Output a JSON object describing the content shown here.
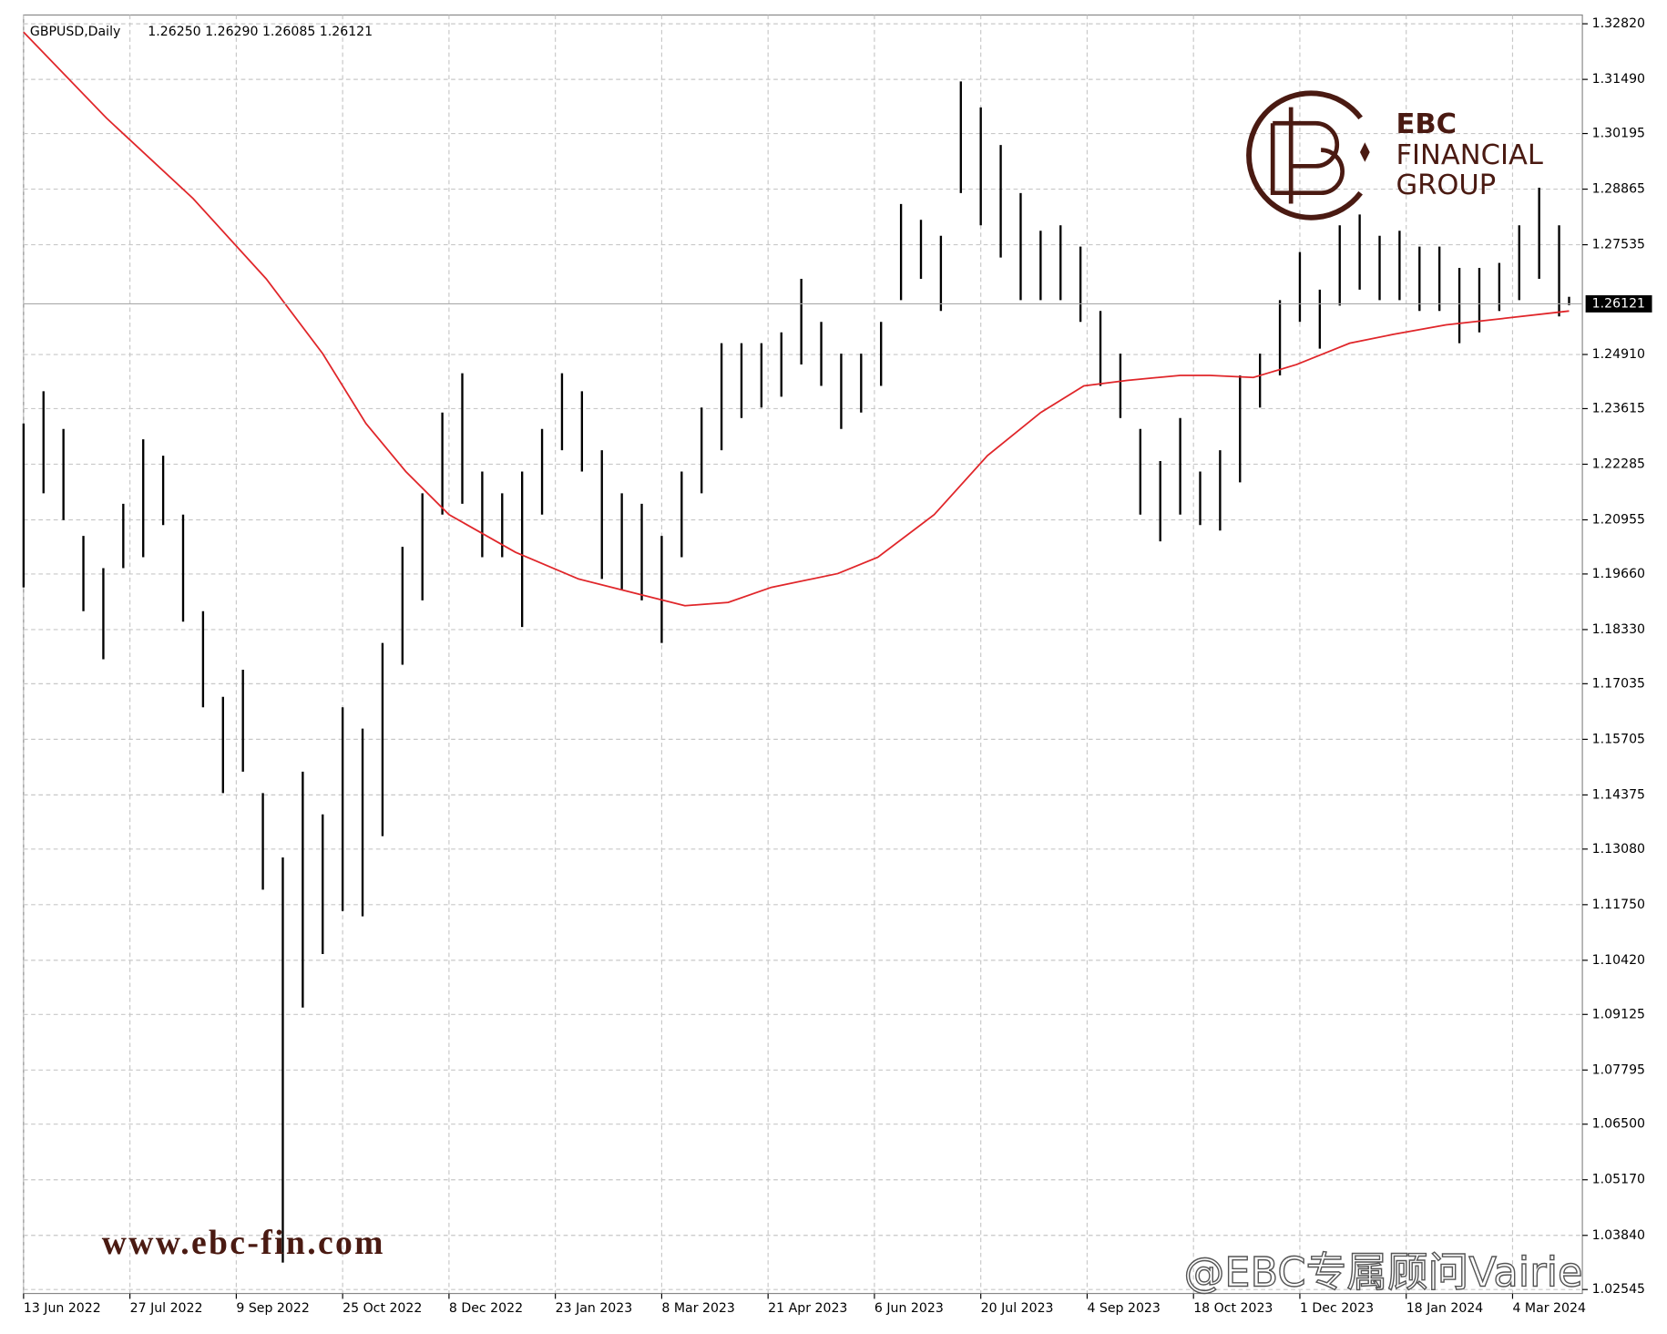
{
  "chart_data": {
    "type": "ohlc",
    "title": "GBPUSD,Daily",
    "header_prices": "1.26250 1.26290 1.26085 1.26121",
    "x": [
      0,
      6,
      12,
      18,
      24,
      30,
      36,
      42,
      48,
      54,
      60,
      66,
      72,
      78,
      84,
      90,
      96,
      102,
      108,
      114,
      120,
      126,
      132,
      138,
      144,
      150,
      156,
      162,
      168,
      174,
      180,
      186,
      192,
      198,
      204,
      210,
      216,
      222,
      228,
      234,
      240,
      246,
      252,
      258,
      264,
      270,
      276,
      282,
      288,
      294,
      300,
      306,
      312,
      318,
      324,
      330,
      336,
      342,
      348,
      354,
      360,
      366,
      372,
      378,
      384,
      390,
      396,
      402,
      408,
      414,
      420,
      426,
      432,
      438,
      444,
      450,
      456,
      462,
      465
    ],
    "high": [
      1.2326,
      1.2403,
      1.2313,
      1.2057,
      1.198,
      1.2134,
      1.2288,
      1.2249,
      1.2108,
      1.1877,
      1.1672,
      1.1737,
      1.1442,
      1.1288,
      1.1493,
      1.1391,
      1.1647,
      1.1596,
      1.1801,
      1.2031,
      1.2159,
      1.2352,
      1.2446,
      1.2211,
      1.2159,
      1.2211,
      1.2313,
      1.2446,
      1.2403,
      1.2262,
      1.2159,
      1.2134,
      1.2057,
      1.2211,
      1.2364,
      1.2518,
      1.2518,
      1.2518,
      1.2544,
      1.2672,
      1.2569,
      1.2493,
      1.2493,
      1.2569,
      1.2851,
      1.2813,
      1.2775,
      1.3144,
      1.3082,
      1.2992,
      1.2877,
      1.2787,
      1.28,
      1.2749,
      1.2595,
      1.2493,
      1.2313,
      1.2236,
      1.2339,
      1.2211,
      1.2262,
      1.2441,
      1.2493,
      1.2621,
      1.2736,
      1.2646,
      1.28,
      1.2826,
      1.2775,
      1.2787,
      1.2749,
      1.2749,
      1.2698,
      1.2698,
      1.271,
      1.28,
      1.289,
      1.28,
      1.2629
    ],
    "low": [
      1.1934,
      1.2159,
      1.2095,
      1.1877,
      1.1762,
      1.198,
      1.2006,
      1.2083,
      1.1852,
      1.1647,
      1.1442,
      1.1493,
      1.1211,
      1.0319,
      1.0929,
      1.1057,
      1.116,
      1.1147,
      1.1339,
      1.1749,
      1.1903,
      1.2108,
      1.2134,
      1.2006,
      1.2006,
      1.1839,
      1.2108,
      1.2262,
      1.2211,
      1.1954,
      1.1929,
      1.1903,
      1.1801,
      1.2006,
      1.2159,
      1.2262,
      1.2339,
      1.2364,
      1.239,
      1.2467,
      1.2416,
      1.2313,
      1.2352,
      1.2416,
      1.2621,
      1.2672,
      1.2595,
      1.2877,
      1.28,
      1.2723,
      1.2621,
      1.2621,
      1.2621,
      1.2569,
      1.2416,
      1.2339,
      1.2108,
      1.2044,
      1.2108,
      1.2083,
      1.207,
      1.2185,
      1.2364,
      1.2441,
      1.2569,
      1.2505,
      1.2608,
      1.2646,
      1.2621,
      1.2621,
      1.2595,
      1.2595,
      1.2518,
      1.2544,
      1.2595,
      1.2621,
      1.2672,
      1.2582,
      1.2609
    ],
    "color": "#000000",
    "ma": {
      "x": [
        0,
        25,
        51,
        73,
        90,
        103,
        115,
        128,
        148,
        167,
        186,
        199,
        212,
        225,
        245,
        257,
        274,
        290,
        306,
        319,
        332,
        348,
        357,
        370,
        383,
        399,
        412,
        428,
        445,
        465
      ],
      "values": [
        1.3262,
        1.3056,
        1.2864,
        1.2672,
        1.2493,
        1.2326,
        1.2211,
        1.2108,
        1.2018,
        1.1954,
        1.1916,
        1.189,
        1.1898,
        1.1934,
        1.1967,
        1.2006,
        1.2108,
        1.2249,
        1.2352,
        1.2416,
        1.2429,
        1.2441,
        1.2441,
        1.2436,
        1.2467,
        1.2518,
        1.2539,
        1.2562,
        1.2577,
        1.2595
      ],
      "color": "#e0262a"
    },
    "last_price": {
      "value": 1.26121,
      "label": "1.26121"
    },
    "xlim": [
      0,
      469
    ],
    "ylim": [
      1.0245,
      1.3303
    ],
    "xticks": [
      {
        "value": 0,
        "label": "13 Jun 2022"
      },
      {
        "value": 32,
        "label": "27 Jul 2022"
      },
      {
        "value": 64,
        "label": "9 Sep 2022"
      },
      {
        "value": 96,
        "label": "25 Oct 2022"
      },
      {
        "value": 128,
        "label": "8 Dec 2022"
      },
      {
        "value": 160,
        "label": "23 Jan 2023"
      },
      {
        "value": 192,
        "label": "8 Mar 2023"
      },
      {
        "value": 224,
        "label": "21 Apr 2023"
      },
      {
        "value": 256,
        "label": "6 Jun 2023"
      },
      {
        "value": 288,
        "label": "20 Jul 2023"
      },
      {
        "value": 320,
        "label": "4 Sep 2023"
      },
      {
        "value": 352,
        "label": "18 Oct 2023"
      },
      {
        "value": 384,
        "label": "1 Dec 2023"
      },
      {
        "value": 416,
        "label": "18 Jan 2024"
      },
      {
        "value": 448,
        "label": "4 Mar 2024"
      }
    ],
    "yticks": [
      {
        "value": 1.3282,
        "label": "1.32820"
      },
      {
        "value": 1.3149,
        "label": "1.31490"
      },
      1.30195,
      1.28865,
      1.27535,
      {
        "value": 1.2491,
        "label": "1.24910"
      },
      1.23615,
      1.22285,
      1.20955,
      {
        "value": 1.1966,
        "label": "1.19660"
      },
      {
        "value": 1.1833,
        "label": "1.18330"
      },
      1.17035,
      1.15705,
      1.14375,
      {
        "value": 1.1308,
        "label": "1.13080"
      },
      {
        "value": 1.1175,
        "label": "1.11750"
      },
      {
        "value": 1.1042,
        "label": "1.10420"
      },
      1.09125,
      1.07795,
      {
        "value": 1.065,
        "label": "1.06500"
      },
      {
        "value": 1.0517,
        "label": "1.05170"
      },
      {
        "value": 1.0384,
        "label": "1.03840"
      },
      1.02545
    ],
    "grid": true
  },
  "logo": {
    "brand": "EBC",
    "line2": "FINANCIAL",
    "line3": "GROUP",
    "url": "www.ebc-fin.com",
    "credit": "@EBC专属顾问Vairie"
  }
}
